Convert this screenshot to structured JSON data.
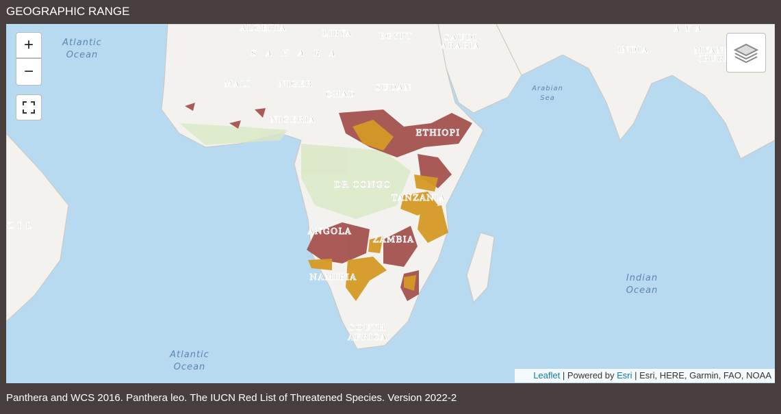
{
  "header": {
    "title": "GEOGRAPHIC RANGE"
  },
  "map": {
    "controls": {
      "zoom_in": "+",
      "zoom_out": "−"
    },
    "labels": {
      "algeria": "ALGERIA",
      "libya": "LIBYA",
      "egypt": "EGYPT",
      "saudi_1": "SAUDI",
      "saudi_2": "ARABIA",
      "india": "INDIA",
      "myanmar_1": "MYANM",
      "myanmar_2": "(BURM",
      "himalaya": "AYA",
      "sahara": "SAHARA",
      "mali": "MALI",
      "niger": "NIGER",
      "chad": "CHAD",
      "sudan": "SUDAN",
      "nigeria": "NIGERIA",
      "ethiopia": "ETHIOPI",
      "drcongo": "DR CONGO",
      "tanzania": "TANZANIA",
      "angola": "ANGOLA",
      "zambia": "ZAMBIA",
      "namibia": "NAMIBIA",
      "south_africa_1": "SOUTH",
      "south_africa_2": "AFRICA",
      "brazil": "ZIL",
      "atlantic_n_1": "Atlantic",
      "atlantic_n_2": "Ocean",
      "arabian_1": "Arabian",
      "arabian_2": "Sea",
      "indian_1": "Indian",
      "indian_2": "Ocean",
      "atlantic_s_1": "Atlantic",
      "atlantic_s_2": "Ocean"
    },
    "attribution": {
      "leaflet": "Leaflet",
      "powered": "| Powered by",
      "esri": "Esri",
      "sources": "| Esri, HERE, Garmin, FAO, NOAA"
    }
  },
  "caption": "Panthera and WCS 2016. Panthera leo. The IUCN Red List of Threatened Species. Version 2022-2"
}
